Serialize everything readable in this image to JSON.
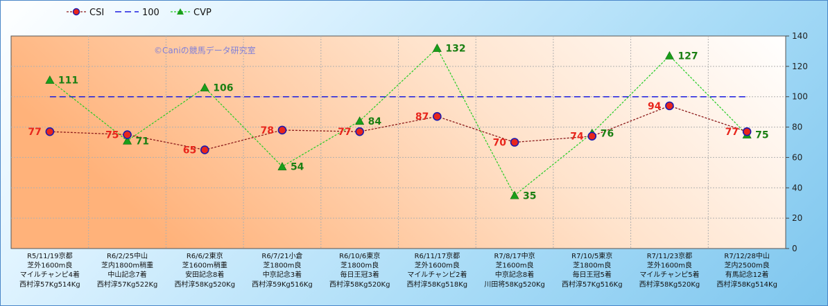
{
  "chart_data": {
    "type": "line",
    "watermark": "©Caniの競馬データ研究室",
    "ylim": [
      0,
      140
    ],
    "yticks": [
      0,
      20,
      40,
      60,
      80,
      100,
      120,
      140
    ],
    "grid": true,
    "legend_position": "top-left",
    "categories": [
      [
        "R5/11/19京都",
        "芝外1600m良",
        "マイルチャンピ4着",
        "西村淳57Kg514Kg"
      ],
      [
        "R6/2/25中山",
        "芝内1800m稍重",
        "中山記念7着",
        "西村淳57Kg522Kg"
      ],
      [
        "R6/6/2東京",
        "芝1600m稍重",
        "安田記念8着",
        "西村淳58Kg520Kg"
      ],
      [
        "R6/7/21小倉",
        "芝1800m良",
        "中京記念3着",
        "西村淳59Kg516Kg"
      ],
      [
        "R6/10/6東京",
        "芝1800m良",
        "毎日王冠3着",
        "西村淳58Kg520Kg"
      ],
      [
        "R6/11/17京都",
        "芝外1600m良",
        "マイルチャンピ2着",
        "西村淳58Kg518Kg"
      ],
      [
        "R7/8/17中京",
        "芝1600m良",
        "中京記念8着",
        "川田将58Kg520Kg"
      ],
      [
        "R7/10/5東京",
        "芝1800m良",
        "毎日王冠5着",
        "西村淳57Kg516Kg"
      ],
      [
        "R7/11/23京都",
        "芝外1600m良",
        "マイルチャンピ5着",
        "西村淳58Kg520Kg"
      ],
      [
        "R7/12/28中山",
        "芝内2500m良",
        "有馬記念12着",
        "西村淳58Kg514Kg"
      ]
    ],
    "series": [
      {
        "name": "CSI",
        "values": [
          77,
          75,
          65,
          78,
          77,
          87,
          70,
          74,
          94,
          77
        ],
        "color": "#8b1a1a",
        "marker_color": "#e8261c"
      },
      {
        "name": "100",
        "values": [
          100,
          100,
          100,
          100,
          100,
          100,
          100,
          100,
          100,
          100
        ],
        "color": "#1a1ae0"
      },
      {
        "name": "CVP",
        "values": [
          111,
          71,
          106,
          54,
          84,
          132,
          35,
          76,
          127,
          75
        ],
        "color": "#22cc22",
        "marker_color": "#1a9e1a"
      }
    ],
    "colors": {
      "plot_bg_left": "#ffb27a",
      "plot_bg_right": "#ffffff",
      "grid": "#b0b0b0"
    }
  }
}
